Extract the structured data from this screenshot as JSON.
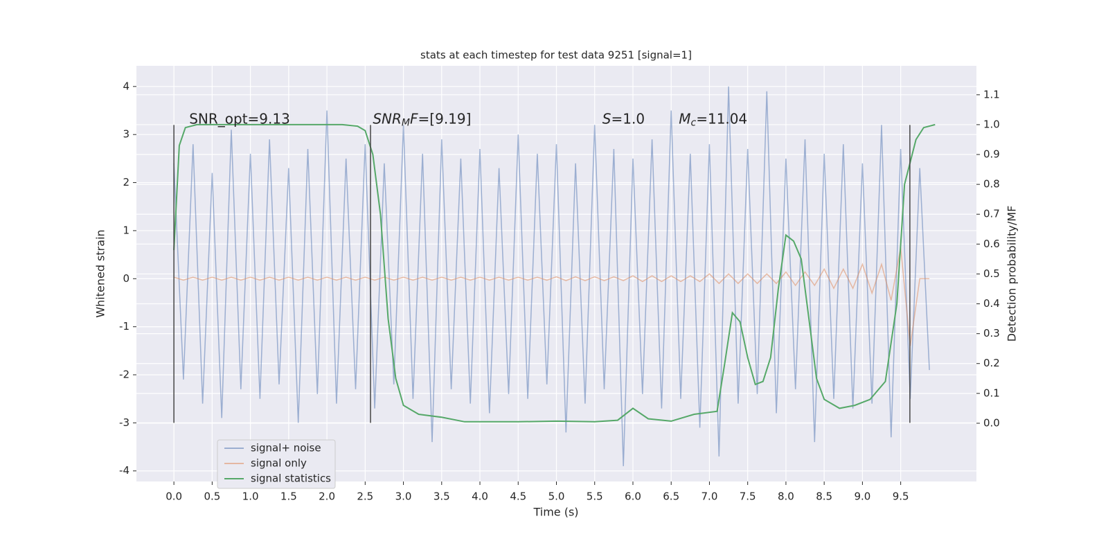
{
  "chart_data": {
    "type": "line",
    "title": "stats at each timestep for test data 9251 [signal=1]",
    "xlabel": "Time (s)",
    "ylabel": "Whitened strain",
    "y2label": "Detection probability/MF",
    "xlim": [
      -0.49,
      10.49
    ],
    "ylim": [
      -4.22,
      4.43
    ],
    "y2lim": [
      -0.195,
      1.197
    ],
    "xticks": [
      {
        "value": 0,
        "label": "0.0"
      },
      0.5,
      {
        "value": 1,
        "label": "1.0"
      },
      1.5,
      {
        "value": 2,
        "label": "2.0"
      },
      2.5,
      {
        "value": 3,
        "label": "3.0"
      },
      3.5,
      {
        "value": 4,
        "label": "4.0"
      },
      4.5,
      {
        "value": 5,
        "label": "5.0"
      },
      5.5,
      {
        "value": 6,
        "label": "6.0"
      },
      6.5,
      {
        "value": 7,
        "label": "7.0"
      },
      7.5,
      {
        "value": 8,
        "label": "8.0"
      },
      8.5,
      {
        "value": 9,
        "label": "9.0"
      },
      9.5
    ],
    "yticks": [
      -4,
      -3,
      -2,
      -1,
      0,
      1,
      2,
      3,
      4
    ],
    "y2ticks": [
      {
        "value": 0,
        "label": "0.0"
      },
      0.1,
      0.2,
      0.3,
      0.4,
      0.5,
      0.6,
      0.7,
      0.8,
      0.9,
      {
        "value": 1,
        "label": "1.0"
      },
      1.1
    ],
    "grid": true,
    "legend": "lower left",
    "vlines": [
      0,
      2.57,
      9.62
    ],
    "vline_range": [
      -3,
      3.2
    ],
    "annotations": [
      {
        "x": 0.2,
        "y": 3.2,
        "parts": [
          {
            "text": "SNR_opt=9.13"
          }
        ]
      },
      {
        "x": 2.6,
        "y": 3.2,
        "parts": [
          {
            "text": "SNR",
            "italic": true
          },
          {
            "text": "M",
            "italic": true,
            "sub": true
          },
          {
            "text": "F",
            "italic": true
          },
          {
            "text": "=[9.19]"
          }
        ]
      },
      {
        "x": 5.6,
        "y": 3.2,
        "parts": [
          {
            "text": "S",
            "italic": true
          },
          {
            "text": "=1.0"
          }
        ]
      },
      {
        "x": 6.6,
        "y": 3.2,
        "parts": [
          {
            "text": "M",
            "italic": true
          },
          {
            "text": "c",
            "italic": true,
            "sub": true
          },
          {
            "text": "=11.04"
          }
        ]
      }
    ],
    "x": [
      0,
      0.125,
      0.25,
      0.375,
      0.5,
      0.625,
      0.75,
      0.875,
      1,
      1.125,
      1.25,
      1.375,
      1.5,
      1.625,
      1.75,
      1.875,
      2,
      2.125,
      2.25,
      2.375,
      2.5,
      2.625,
      2.75,
      2.875,
      3,
      3.125,
      3.25,
      3.375,
      3.5,
      3.625,
      3.75,
      3.875,
      4,
      4.125,
      4.25,
      4.375,
      4.5,
      4.625,
      4.75,
      4.875,
      5,
      5.125,
      5.25,
      5.375,
      5.5,
      5.625,
      5.75,
      5.875,
      6,
      6.125,
      6.25,
      6.375,
      6.5,
      6.625,
      6.75,
      6.875,
      7,
      7.125,
      7.25,
      7.375,
      7.5,
      7.625,
      7.75,
      7.875,
      8,
      8.125,
      8.25,
      8.375,
      8.5,
      8.625,
      8.75,
      8.875,
      9,
      9.125,
      9.25,
      9.375,
      9.5,
      9.625,
      9.75,
      9.875
    ],
    "series": [
      {
        "name": "signal+ noise",
        "color": "#4c72b0",
        "alpha": 0.5,
        "values": [
          2.4,
          -2.1,
          2.8,
          -2.6,
          2.2,
          -2.9,
          3.1,
          -2.3,
          2.6,
          -2.5,
          2.9,
          -2.2,
          2.3,
          -3.0,
          2.7,
          -2.4,
          3.5,
          -2.6,
          2.5,
          -2.3,
          2.8,
          -2.7,
          2.4,
          -2.2,
          3.2,
          -2.5,
          2.6,
          -3.4,
          2.9,
          -2.3,
          2.5,
          -2.6,
          2.7,
          -2.8,
          2.3,
          -2.4,
          3.0,
          -2.5,
          2.6,
          -2.2,
          2.8,
          -3.2,
          2.4,
          -2.6,
          3.2,
          -2.3,
          2.7,
          -3.9,
          2.5,
          -2.4,
          2.9,
          -2.7,
          3.5,
          -2.5,
          2.6,
          -3.1,
          2.8,
          -3.7,
          4.0,
          -2.6,
          2.7,
          -2.4,
          3.9,
          -2.8,
          2.5,
          -2.3,
          2.9,
          -3.4,
          2.6,
          -2.5,
          2.8,
          -2.7,
          2.4,
          -2.6,
          3.2,
          -3.3,
          2.7,
          -2.5,
          2.3,
          -1.9
        ]
      },
      {
        "name": "signal only",
        "color": "#dd8452",
        "alpha": 0.5,
        "values": [
          0.03,
          -0.03,
          0.03,
          -0.03,
          0.03,
          -0.03,
          0.03,
          -0.03,
          0.03,
          -0.03,
          0.03,
          -0.03,
          0.03,
          -0.03,
          0.03,
          -0.03,
          0.03,
          -0.03,
          0.03,
          -0.03,
          0.03,
          -0.03,
          0.03,
          -0.03,
          0.03,
          -0.03,
          0.03,
          -0.03,
          0.03,
          -0.03,
          0.03,
          -0.03,
          0.03,
          -0.03,
          0.03,
          -0.03,
          0.03,
          -0.03,
          0.03,
          -0.03,
          0.04,
          -0.04,
          0.04,
          -0.04,
          0.04,
          -0.04,
          0.04,
          -0.04,
          0.06,
          -0.06,
          0.06,
          -0.06,
          0.06,
          -0.06,
          0.06,
          -0.06,
          0.1,
          -0.1,
          0.1,
          -0.1,
          0.1,
          -0.1,
          0.1,
          -0.1,
          0.14,
          -0.14,
          0.14,
          -0.14,
          0.2,
          -0.2,
          0.2,
          -0.2,
          0.3,
          -0.3,
          0.3,
          -0.45,
          0.65,
          -1.4,
          0,
          0
        ]
      },
      {
        "name": "signal statistics",
        "color": "#55a868",
        "axis": "y2",
        "x": [
          0,
          0.07,
          0.15,
          0.3,
          2.2,
          2.4,
          2.5,
          2.6,
          2.7,
          2.8,
          2.9,
          3.0,
          3.2,
          3.5,
          3.8,
          4.5,
          5.0,
          5.5,
          5.8,
          6.0,
          6.2,
          6.5,
          6.8,
          7.1,
          7.2,
          7.3,
          7.4,
          7.5,
          7.6,
          7.7,
          7.8,
          7.9,
          8.0,
          8.1,
          8.2,
          8.3,
          8.4,
          8.5,
          8.7,
          8.9,
          9.1,
          9.3,
          9.45,
          9.55,
          9.7,
          9.8,
          9.95
        ],
        "values": [
          0.58,
          0.93,
          0.99,
          1.0,
          1.0,
          0.995,
          0.98,
          0.9,
          0.7,
          0.35,
          0.15,
          0.06,
          0.03,
          0.02,
          0.005,
          0.005,
          0.007,
          0.005,
          0.01,
          0.05,
          0.015,
          0.007,
          0.03,
          0.04,
          0.2,
          0.37,
          0.34,
          0.22,
          0.13,
          0.14,
          0.22,
          0.45,
          0.63,
          0.61,
          0.55,
          0.35,
          0.15,
          0.08,
          0.05,
          0.06,
          0.08,
          0.14,
          0.4,
          0.8,
          0.95,
          0.99,
          1.0
        ]
      }
    ]
  }
}
